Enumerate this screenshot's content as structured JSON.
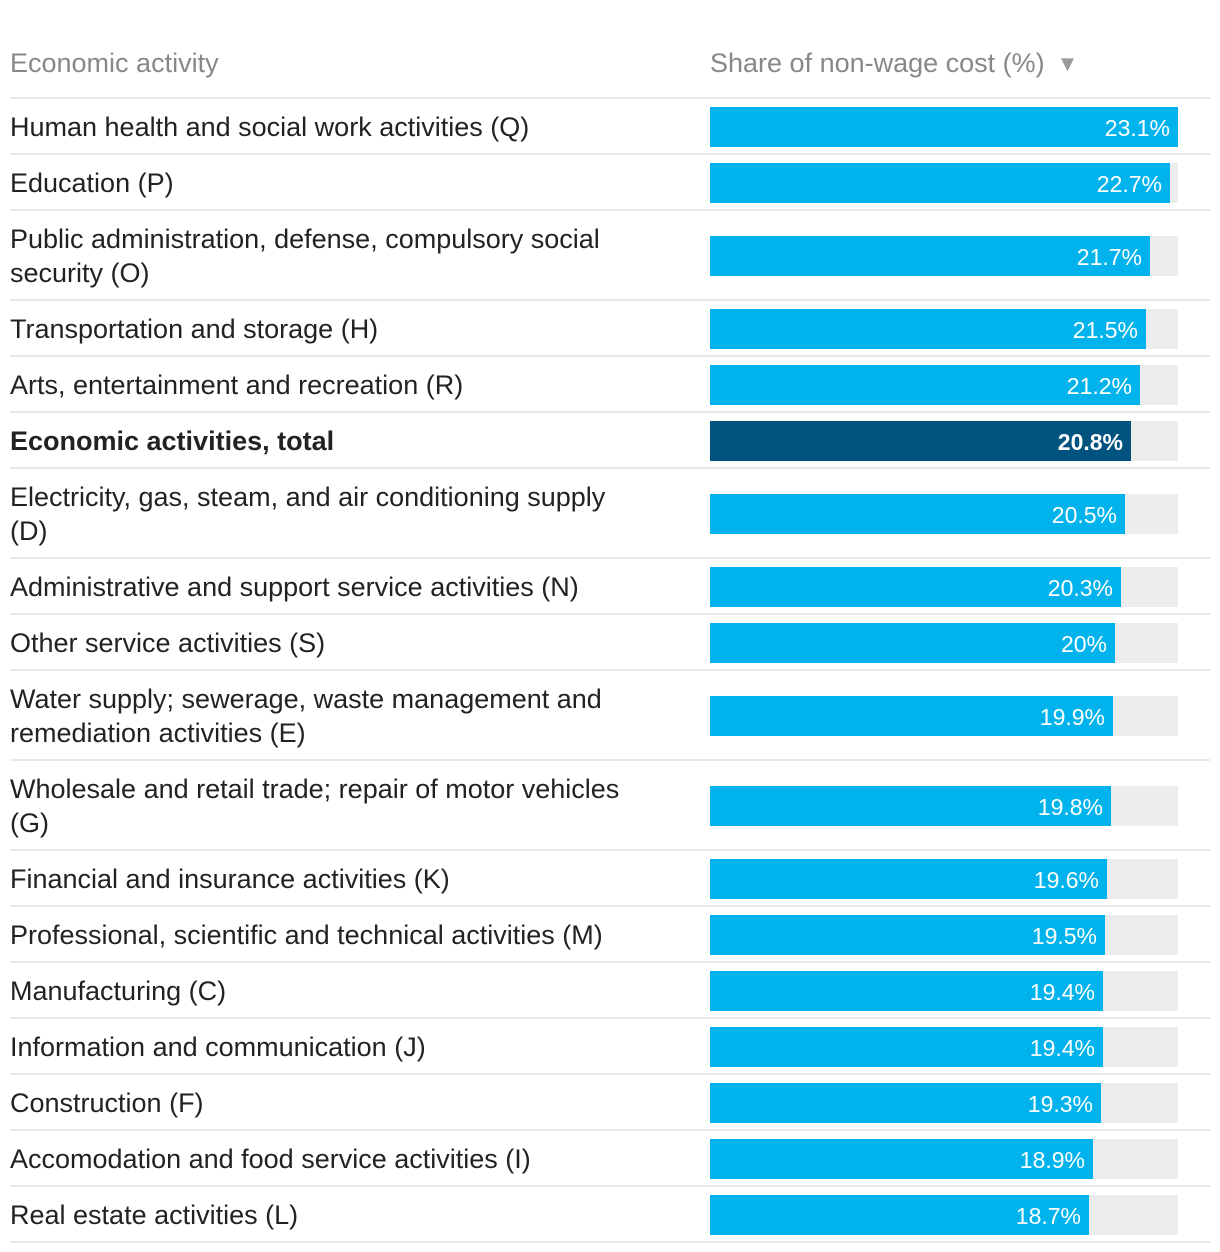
{
  "header": {
    "activity_label": "Economic activity",
    "share_label": "Share of non-wage cost (%)",
    "sort_icon": "sort-descending-icon"
  },
  "colors": {
    "bar": "#00b3ec",
    "bar_total": "#00527f",
    "track": "#ececec"
  },
  "chart_data": {
    "type": "bar",
    "orientation": "horizontal",
    "xlim": [
      0,
      23.1
    ],
    "categories": [
      "Human health and social work activities (Q)",
      "Education (P)",
      "Public administration, defense, compulsory social security (O)",
      "Transportation and storage (H)",
      "Arts, entertainment and recreation (R)",
      "Economic activities, total",
      "Electricity, gas, steam, and air conditioning supply (D)",
      "Administrative and support service activities (N)",
      "Other service activities (S)",
      "Water supply; sewerage, waste management and remediation activities (E)",
      "Wholesale and retail trade; repair of motor vehicles (G)",
      "Financial and insurance activities (K)",
      "Professional, scientific and technical activities (M)",
      "Manufacturing (C)",
      "Information and communication (J)",
      "Construction (F)",
      "Accomodation and food service activities (I)",
      "Real estate activities (L)"
    ],
    "values": [
      23.1,
      22.7,
      21.7,
      21.5,
      21.2,
      20.8,
      20.5,
      20.3,
      20,
      19.9,
      19.8,
      19.6,
      19.5,
      19.4,
      19.4,
      19.3,
      18.9,
      18.7
    ],
    "value_labels": [
      "23.1%",
      "22.7%",
      "21.7%",
      "21.5%",
      "21.2%",
      "20.8%",
      "20.5%",
      "20.3%",
      "20%",
      "19.9%",
      "19.8%",
      "19.6%",
      "19.5%",
      "19.4%",
      "19.4%",
      "19.3%",
      "18.9%",
      "18.7%"
    ],
    "highlighted": [
      "Economic activities, total"
    ],
    "xlabel": "Share of non-wage cost (%)",
    "ylabel": "Economic activity"
  }
}
